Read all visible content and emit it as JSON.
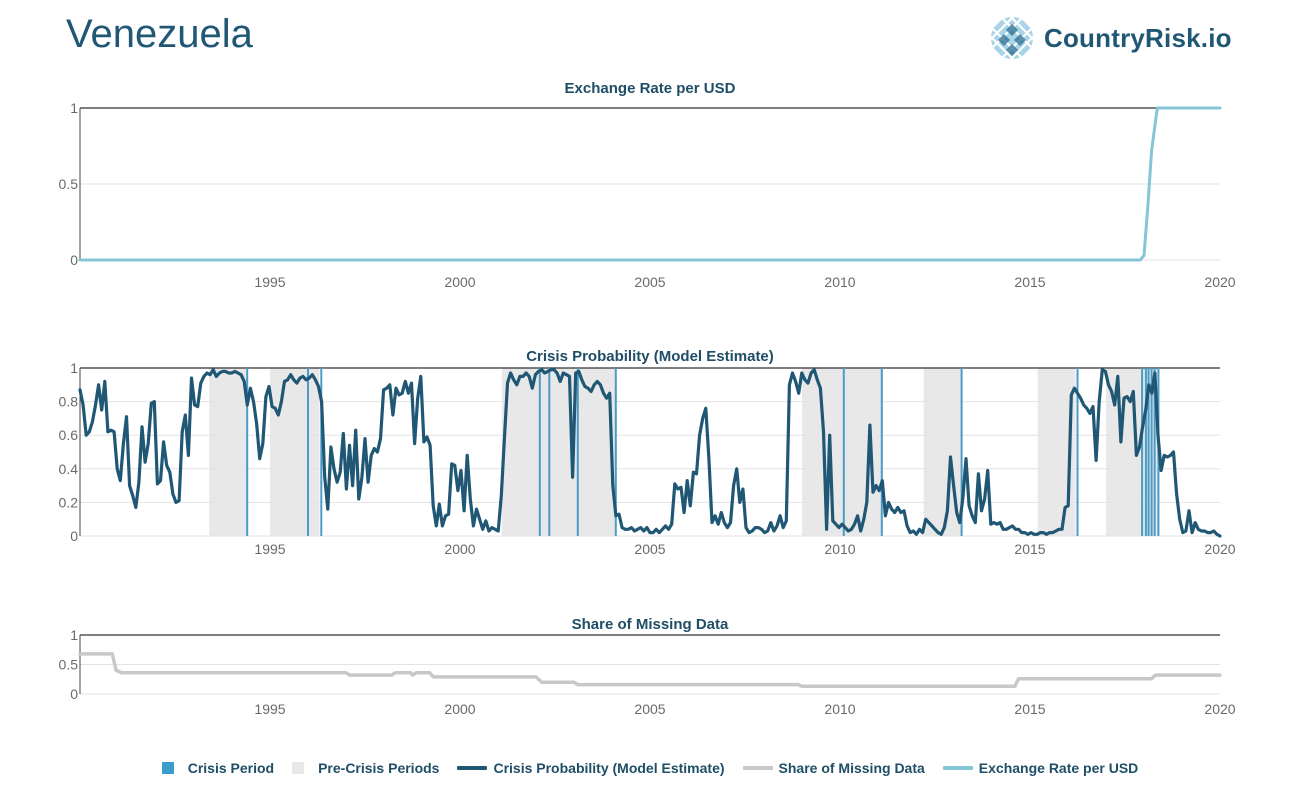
{
  "page": {
    "country": "Venezuela",
    "brand": "CountryRisk.io"
  },
  "colors": {
    "crisis": "#4a9cc7",
    "precrisis": "#e8e8e8",
    "probability": "#1f5775",
    "missing": "#c8c8c8",
    "exchange": "#86c5d8",
    "title": "#1f4e66"
  },
  "legend": [
    {
      "label": "Crisis Period",
      "kind": "square",
      "color": "#3a9dc9"
    },
    {
      "label": "Pre-Crisis Periods",
      "kind": "square",
      "color": "#e8e8e8"
    },
    {
      "label": "Crisis Probability (Model Estimate)",
      "kind": "line",
      "color": "#1f5775"
    },
    {
      "label": "Share of Missing Data",
      "kind": "line",
      "color": "#c8c8c8"
    },
    {
      "label": "Exchange Rate per USD",
      "kind": "line",
      "color": "#86c5d8"
    }
  ],
  "chart_data": [
    {
      "type": "line",
      "title": "Exchange Rate per USD",
      "xlim": [
        1990.0,
        2020.0
      ],
      "ylim": [
        0,
        1
      ],
      "x_ticks": [
        1995,
        2000,
        2005,
        2010,
        2015,
        2020
      ],
      "y_ticks": [
        0,
        0.5,
        1
      ],
      "grid": true,
      "series": [
        {
          "name": "Exchange Rate per USD",
          "points": [
            [
              1990.0,
              0
            ],
            [
              2017.9,
              0
            ],
            [
              2018.0,
              0.03
            ],
            [
              2018.1,
              0.35
            ],
            [
              2018.2,
              0.72
            ],
            [
              2018.35,
              1.0
            ],
            [
              2020.0,
              1.0
            ]
          ]
        }
      ]
    },
    {
      "type": "line",
      "title": "Crisis Probability (Model Estimate)",
      "xlim": [
        1990.0,
        2020.0
      ],
      "ylim": [
        0,
        1
      ],
      "x_ticks": [
        1995,
        2000,
        2005,
        2010,
        2015,
        2020
      ],
      "y_ticks": [
        0,
        0.2,
        0.4,
        0.6,
        0.8,
        1
      ],
      "grid": true,
      "pre_crisis_periods": [
        [
          1993.4,
          1994.4
        ],
        [
          1995.0,
          1996.3
        ],
        [
          2001.1,
          2004.1
        ],
        [
          2009.0,
          2011.1
        ],
        [
          2012.2,
          2013.2
        ],
        [
          2015.2,
          2016.2
        ],
        [
          2017.0,
          2018.4
        ]
      ],
      "crisis_periods": [
        1994.4,
        1996.0,
        1996.35,
        2002.1,
        2002.35,
        2003.1,
        2004.1,
        2010.1,
        2011.1,
        2013.2,
        2016.25,
        2017.95,
        2018.05,
        2018.12,
        2018.2,
        2018.28,
        2018.38
      ],
      "series": [
        {
          "name": "Crisis Probability (Model Estimate)",
          "values": [
            0.87,
            0.78,
            0.6,
            0.62,
            0.68,
            0.78,
            0.9,
            0.75,
            0.92,
            0.62,
            0.63,
            0.62,
            0.4,
            0.33,
            0.55,
            0.71,
            0.3,
            0.24,
            0.17,
            0.32,
            0.65,
            0.44,
            0.55,
            0.79,
            0.8,
            0.31,
            0.33,
            0.56,
            0.42,
            0.38,
            0.25,
            0.2,
            0.21,
            0.62,
            0.72,
            0.48,
            0.94,
            0.78,
            0.77,
            0.91,
            0.95,
            0.97,
            0.96,
            0.99,
            0.95,
            0.97,
            0.98,
            0.98,
            0.97,
            0.97,
            0.98,
            0.97,
            0.96,
            0.92,
            0.78,
            0.88,
            0.8,
            0.67,
            0.46,
            0.55,
            0.83,
            0.89,
            0.77,
            0.76,
            0.72,
            0.8,
            0.92,
            0.93,
            0.96,
            0.93,
            0.91,
            0.94,
            0.95,
            0.93,
            0.94,
            0.96,
            0.93,
            0.89,
            0.8,
            0.35,
            0.16,
            0.53,
            0.4,
            0.32,
            0.38,
            0.61,
            0.28,
            0.54,
            0.3,
            0.63,
            0.22,
            0.35,
            0.58,
            0.32,
            0.48,
            0.52,
            0.5,
            0.58,
            0.87,
            0.88,
            0.9,
            0.72,
            0.88,
            0.84,
            0.85,
            0.92,
            0.85,
            0.91,
            0.55,
            0.82,
            0.95,
            0.56,
            0.59,
            0.54,
            0.18,
            0.06,
            0.19,
            0.06,
            0.12,
            0.13,
            0.43,
            0.42,
            0.27,
            0.39,
            0.15,
            0.48,
            0.22,
            0.06,
            0.16,
            0.1,
            0.04,
            0.09,
            0.03,
            0.05,
            0.04,
            0.03,
            0.24,
            0.58,
            0.91,
            0.97,
            0.93,
            0.9,
            0.95,
            0.95,
            0.97,
            0.95,
            0.88,
            0.96,
            0.98,
            0.99,
            0.97,
            0.98,
            0.99,
            0.99,
            0.97,
            0.92,
            0.97,
            0.96,
            0.95,
            0.35,
            0.97,
            0.98,
            0.93,
            0.89,
            0.88,
            0.86,
            0.9,
            0.92,
            0.9,
            0.85,
            0.82,
            0.85,
            0.3,
            0.12,
            0.13,
            0.05,
            0.04,
            0.04,
            0.05,
            0.03,
            0.04,
            0.05,
            0.03,
            0.05,
            0.02,
            0.02,
            0.04,
            0.02,
            0.04,
            0.06,
            0.04,
            0.07,
            0.31,
            0.28,
            0.29,
            0.14,
            0.33,
            0.18,
            0.38,
            0.37,
            0.6,
            0.7,
            0.76,
            0.46,
            0.08,
            0.12,
            0.07,
            0.14,
            0.08,
            0.05,
            0.08,
            0.3,
            0.4,
            0.2,
            0.28,
            0.05,
            0.02,
            0.03,
            0.05,
            0.05,
            0.04,
            0.02,
            0.03,
            0.08,
            0.03,
            0.06,
            0.12,
            0.05,
            0.09,
            0.9,
            0.97,
            0.92,
            0.85,
            0.97,
            0.93,
            0.91,
            0.97,
            0.99,
            0.93,
            0.88,
            0.62,
            0.04,
            0.6,
            0.09,
            0.07,
            0.05,
            0.07,
            0.05,
            0.03,
            0.04,
            0.07,
            0.12,
            0.03,
            0.1,
            0.2,
            0.66,
            0.26,
            0.3,
            0.27,
            0.33,
            0.12,
            0.2,
            0.16,
            0.14,
            0.17,
            0.14,
            0.15,
            0.06,
            0.02,
            0.03,
            0.01,
            0.04,
            0.02,
            0.1,
            0.08,
            0.06,
            0.04,
            0.02,
            0.01,
            0.05,
            0.15,
            0.47,
            0.3,
            0.14,
            0.08,
            0.23,
            0.46,
            0.18,
            0.12,
            0.08,
            0.37,
            0.15,
            0.22,
            0.39,
            0.07,
            0.08,
            0.07,
            0.08,
            0.04,
            0.04,
            0.05,
            0.06,
            0.04,
            0.04,
            0.02,
            0.02,
            0.01,
            0.02,
            0.01,
            0.01,
            0.02,
            0.02,
            0.01,
            0.02,
            0.02,
            0.03,
            0.04,
            0.04,
            0.17,
            0.18,
            0.84,
            0.88,
            0.85,
            0.82,
            0.78,
            0.76,
            0.73,
            0.77,
            0.45,
            0.8,
            0.99,
            0.98,
            0.9,
            0.86,
            0.78,
            0.95,
            0.56,
            0.82,
            0.83,
            0.8,
            0.86,
            0.48,
            0.53,
            0.65,
            0.75,
            0.9,
            0.85,
            0.97,
            0.6,
            0.39,
            0.48,
            0.47,
            0.48,
            0.5,
            0.25,
            0.1,
            0.02,
            0.03,
            0.15,
            0.02,
            0.08,
            0.04,
            0.03,
            0.03,
            0.02,
            0.02,
            0.03,
            0.01,
            0.0
          ]
        }
      ]
    },
    {
      "type": "line",
      "title": "Share of Missing Data",
      "xlim": [
        1990.0,
        2020.0
      ],
      "ylim": [
        0,
        1
      ],
      "x_ticks": [
        1995,
        2000,
        2005,
        2010,
        2015,
        2020
      ],
      "y_ticks": [
        0,
        0.5,
        1
      ],
      "grid": true,
      "series": [
        {
          "name": "Share of Missing Data",
          "points": [
            [
              1990.0,
              0.68
            ],
            [
              1990.85,
              0.68
            ],
            [
              1990.95,
              0.4
            ],
            [
              1991.1,
              0.36
            ],
            [
              1997.0,
              0.36
            ],
            [
              1997.1,
              0.32
            ],
            [
              1998.2,
              0.32
            ],
            [
              1998.3,
              0.36
            ],
            [
              1998.7,
              0.36
            ],
            [
              1998.75,
              0.32
            ],
            [
              1998.85,
              0.36
            ],
            [
              1999.2,
              0.36
            ],
            [
              1999.3,
              0.29
            ],
            [
              2002.0,
              0.29
            ],
            [
              2002.15,
              0.2
            ],
            [
              2003.0,
              0.2
            ],
            [
              2003.1,
              0.16
            ],
            [
              2008.9,
              0.16
            ],
            [
              2009.0,
              0.13
            ],
            [
              2014.6,
              0.13
            ],
            [
              2014.7,
              0.26
            ],
            [
              2018.2,
              0.26
            ],
            [
              2018.3,
              0.32
            ],
            [
              2020.0,
              0.32
            ]
          ]
        }
      ]
    }
  ]
}
